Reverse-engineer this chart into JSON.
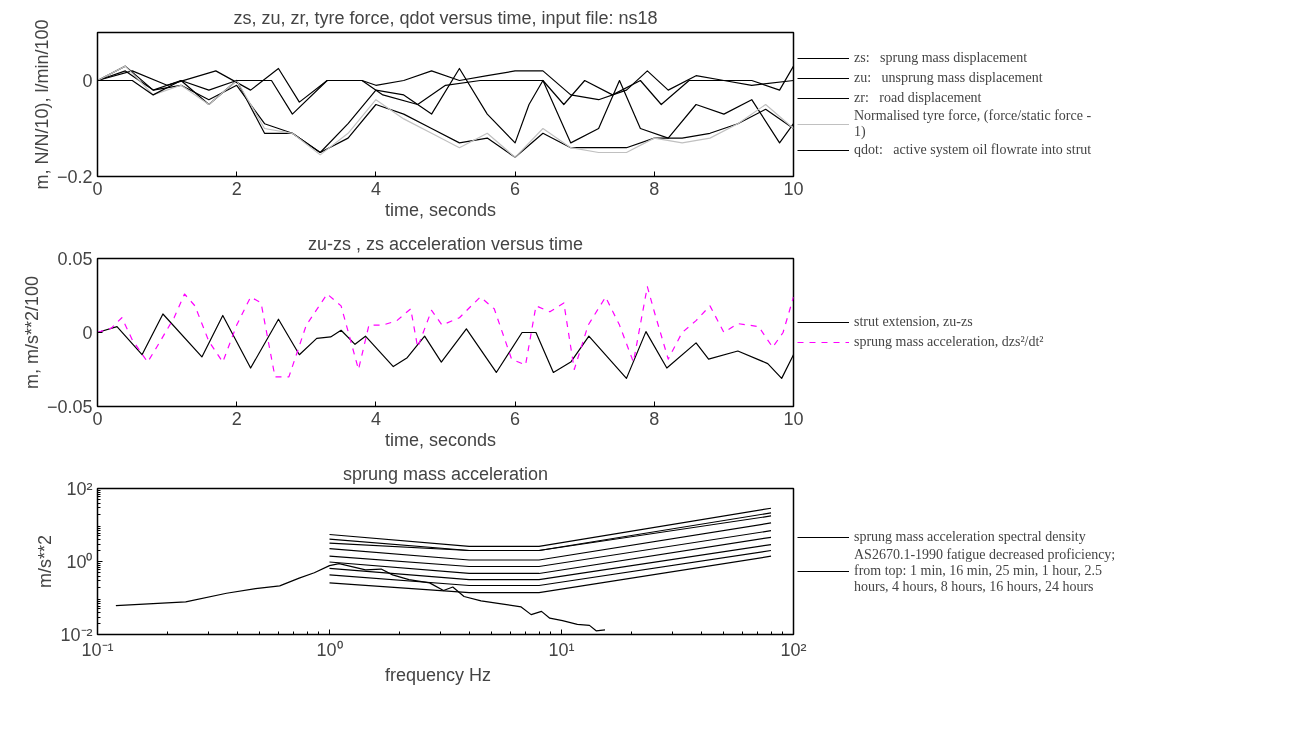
{
  "chart_data": [
    {
      "type": "line",
      "title": "zs, zu, zr, tyre force, qdot versus time, input file: ns18",
      "xlabel": "time,   seconds",
      "ylabel": "m, N/N/10), l/min/100",
      "xlim": [
        0,
        10
      ],
      "ylim": [
        -0.2,
        0.1
      ],
      "xticks": [
        0,
        2,
        4,
        6,
        8,
        10
      ],
      "yticks": [
        -0.2,
        0
      ],
      "grid": false,
      "legend": "right",
      "series": [
        {
          "name": "zs:   sprung mass displacement",
          "color": "#000000",
          "x": [
            0,
            0.4,
            0.8,
            1.2,
            1.6,
            2.0,
            2.4,
            2.8,
            3.2,
            3.6,
            4.0,
            4.4,
            4.8,
            5.2,
            5.6,
            6.0,
            6.2,
            6.4,
            6.8,
            7.2,
            7.5,
            7.8,
            8.2,
            8.6,
            9.0,
            9.4,
            9.8,
            10
          ],
          "values": [
            0,
            0.03,
            -0.02,
            0.0,
            -0.05,
            0.0,
            -0.11,
            -0.11,
            -0.15,
            -0.09,
            -0.02,
            -0.03,
            -0.07,
            0.025,
            -0.07,
            -0.13,
            -0.05,
            0.0,
            -0.13,
            -0.1,
            0.0,
            -0.1,
            -0.12,
            -0.05,
            -0.07,
            -0.04,
            -0.13,
            -0.09
          ]
        },
        {
          "name": "zu:   unsprung mass displacement",
          "color": "#000000",
          "x": [
            0,
            0.4,
            0.8,
            1.2,
            1.6,
            2.0,
            2.4,
            2.8,
            3.2,
            3.6,
            4.0,
            4.4,
            4.8,
            5.2,
            5.6,
            6.0,
            6.4,
            6.8,
            7.2,
            7.6,
            8.0,
            8.4,
            8.8,
            9.2,
            9.6,
            10
          ],
          "values": [
            0,
            0.02,
            -0.02,
            -0.01,
            -0.04,
            -0.01,
            -0.09,
            -0.11,
            -0.15,
            -0.12,
            -0.05,
            -0.07,
            -0.1,
            -0.13,
            -0.12,
            -0.16,
            -0.11,
            -0.14,
            -0.14,
            -0.14,
            -0.12,
            -0.12,
            -0.11,
            -0.09,
            -0.06,
            -0.1
          ]
        },
        {
          "name": "zr:   road displacement",
          "color": "#000000",
          "x": [
            0,
            0.5,
            1.0,
            1.7,
            2.2,
            2.6,
            2.9,
            3.3,
            3.8,
            4.0,
            4.4,
            4.8,
            5.2,
            5.6,
            6.0,
            6.4,
            6.8,
            7.2,
            7.6,
            7.9,
            8.2,
            8.6,
            9.0,
            9.4,
            9.8,
            10
          ],
          "values": [
            0,
            0.02,
            -0.01,
            0.02,
            -0.02,
            0.025,
            -0.045,
            0.0,
            0.0,
            -0.01,
            0.0,
            0.02,
            0.0,
            0.01,
            0.02,
            0.02,
            -0.03,
            -0.04,
            -0.02,
            0.02,
            -0.02,
            0.01,
            0.0,
            0.0,
            -0.02,
            0.03
          ]
        },
        {
          "name": "Normalised tyre force, (force/static force - 1)",
          "color": "#c0c0c0",
          "x": [
            0,
            0.4,
            0.8,
            1.2,
            1.6,
            2.0,
            2.4,
            2.8,
            3.2,
            3.6,
            4.0,
            4.4,
            4.8,
            5.2,
            5.6,
            6.0,
            6.4,
            6.8,
            7.2,
            7.6,
            8.0,
            8.4,
            8.8,
            9.2,
            9.6,
            10
          ],
          "values": [
            0,
            0.03,
            -0.03,
            -0.01,
            -0.05,
            0.0,
            -0.1,
            -0.11,
            -0.155,
            -0.11,
            -0.04,
            -0.08,
            -0.11,
            -0.14,
            -0.11,
            -0.16,
            -0.1,
            -0.14,
            -0.15,
            -0.15,
            -0.12,
            -0.13,
            -0.12,
            -0.09,
            -0.05,
            -0.1
          ]
        },
        {
          "name": "qdot:   active system oil flowrate into strut",
          "color": "#000000",
          "x": [
            0,
            0.5,
            0.8,
            1.2,
            1.6,
            2.0,
            2.5,
            2.8,
            3.3,
            3.8,
            4.1,
            4.6,
            5.0,
            5.5,
            6.0,
            6.4,
            6.7,
            7.0,
            7.4,
            7.8,
            8.1,
            8.5,
            9.0,
            9.4,
            10
          ],
          "values": [
            0,
            0,
            -0.03,
            0.0,
            -0.02,
            0.0,
            0.0,
            -0.07,
            0.0,
            0.0,
            -0.03,
            -0.05,
            -0.01,
            0.0,
            0.0,
            0.0,
            -0.05,
            0.0,
            -0.03,
            0.0,
            -0.05,
            0.0,
            0.0,
            -0.01,
            0.0
          ]
        }
      ]
    },
    {
      "type": "line",
      "title": "zu-zs , zs acceleration versus time",
      "xlabel": "time,   seconds",
      "ylabel": "m, m/s**2/100",
      "xlim": [
        0,
        10
      ],
      "ylim": [
        -0.05,
        0.05
      ],
      "xticks": [
        0,
        2,
        4,
        6,
        8,
        10
      ],
      "yticks": [
        -0.05,
        0,
        0.05
      ],
      "grid": false,
      "legend": "right",
      "series": [
        {
          "name": "strut extension, zu-zs",
          "color": "#000000",
          "line_style": "solid",
          "x": [
            0,
            0.28,
            0.64,
            0.94,
            1.5,
            1.8,
            2.2,
            2.6,
            2.9,
            3.15,
            3.35,
            3.5,
            3.7,
            3.85,
            4.25,
            4.45,
            4.7,
            4.94,
            5.3,
            5.73,
            6.1,
            6.3,
            6.55,
            6.8,
            7.06,
            7.6,
            7.88,
            8.18,
            8.6,
            8.78,
            9.2,
            9.63,
            9.83,
            10
          ],
          "values": [
            0,
            0.004,
            -0.015,
            0.0125,
            -0.0165,
            0.0115,
            -0.024,
            0.009,
            -0.015,
            -0.004,
            -0.003,
            0.0015,
            -0.008,
            -0.0025,
            -0.023,
            -0.017,
            -0.0025,
            -0.02,
            0.0025,
            -0.027,
            0,
            0,
            -0.027,
            -0.02,
            -0.0025,
            -0.031,
            0.0006,
            -0.024,
            -0.007,
            -0.018,
            -0.0125,
            -0.021,
            -0.031,
            -0.015
          ]
        },
        {
          "name": "sprung mass acceleration, dzs²/dt²",
          "color": "#ff00ff",
          "line_style": "dashed",
          "x": [
            0,
            0.2,
            0.35,
            0.5,
            0.72,
            0.85,
            1.1,
            1.25,
            1.4,
            1.6,
            1.8,
            2.0,
            2.2,
            2.35,
            2.55,
            2.75,
            3.0,
            3.3,
            3.5,
            3.75,
            3.9,
            4.1,
            4.3,
            4.5,
            4.6,
            4.8,
            4.95,
            5.2,
            5.5,
            5.7,
            5.95,
            6.15,
            6.3,
            6.5,
            6.7,
            6.85,
            7.05,
            7.3,
            7.5,
            7.7,
            7.9,
            8.0,
            8.2,
            8.4,
            8.6,
            8.8,
            9.0,
            9.2,
            9.5,
            9.7,
            9.85,
            10
          ],
          "values": [
            0,
            0.003,
            0.01,
            -0.005,
            -0.02,
            -0.01,
            0.01,
            0.026,
            0.018,
            -0.006,
            -0.02,
            0.005,
            0.024,
            0.02,
            -0.03,
            -0.03,
            0.005,
            0.026,
            0.018,
            -0.025,
            0.005,
            0.005,
            0.008,
            0.016,
            -0.01,
            0.015,
            0.005,
            0.01,
            0.024,
            0.016,
            -0.018,
            -0.022,
            0.018,
            0.014,
            0.02,
            -0.025,
            0.005,
            0.024,
            0.005,
            -0.02,
            0.031,
            0.014,
            -0.018,
            0.0,
            0.008,
            0.018,
            0.0,
            0.006,
            0.004,
            -0.01,
            0.0,
            0.024
          ]
        }
      ]
    },
    {
      "type": "line",
      "title": "sprung mass acceleration",
      "xlabel": "frequency    Hz",
      "ylabel": "m/s**2",
      "log": "xy",
      "xlim": [
        0.1,
        100
      ],
      "ylim": [
        0.01,
        100
      ],
      "xticks": [
        {
          "value": 0.1,
          "label": "10⁻¹"
        },
        {
          "value": 1,
          "label": "10⁰"
        },
        {
          "value": 10,
          "label": "10¹"
        },
        {
          "value": 100,
          "label": "10²"
        }
      ],
      "yticks": [
        {
          "value": 0.01,
          "label": "10⁻²"
        },
        {
          "value": 1,
          "label": "10⁰"
        },
        {
          "value": 100,
          "label": "10²"
        }
      ],
      "grid": false,
      "legend": "right",
      "series": [
        {
          "name": "sprung mass acceleration spectral density",
          "color": "#000000",
          "x": [
            0.12,
            0.24,
            0.36,
            0.48,
            0.61,
            0.74,
            0.86,
            1.0,
            1.1,
            1.43,
            1.67,
            1.87,
            2.2,
            2.7,
            3.1,
            3.4,
            3.8,
            4.5,
            5.6,
            6.7,
            7.4,
            8.2,
            8.9,
            10.1,
            11.7,
            13.2,
            14.1,
            15.4
          ],
          "values": [
            0.062,
            0.078,
            0.135,
            0.18,
            0.215,
            0.35,
            0.49,
            0.77,
            0.87,
            0.59,
            0.62,
            0.43,
            0.32,
            0.26,
            0.16,
            0.2,
            0.11,
            0.083,
            0.068,
            0.057,
            0.035,
            0.043,
            0.028,
            0.024,
            0.019,
            0.0178,
            0.0126,
            0.0134
          ]
        },
        {
          "name": "AS2670.1-1990 fatigue decreased proficiency; from top: 1 min, 16 min, 25 min, 1 hour, 2.5 hours, 4 hours, 8 hours, 16 hours, 24 hours",
          "color": "#000000",
          "x": [
            1,
            4,
            8,
            80
          ],
          "values": [
            5.5,
            2.6,
            2.6,
            28.8
          ]
        },
        {
          "color": "#000000",
          "x": [
            1,
            4,
            8,
            80
          ],
          "values": [
            4.1,
            2.0,
            2.0,
            21.5
          ]
        },
        {
          "color": "#000000",
          "x": [
            1,
            4,
            8,
            80
          ],
          "values": [
            3.2,
            2.0,
            2.0,
            17.7
          ]
        },
        {
          "color": "#000000",
          "x": [
            1,
            4,
            8,
            80
          ],
          "values": [
            2.25,
            1.1,
            1.1,
            11.4
          ]
        },
        {
          "color": "#000000",
          "x": [
            1,
            4,
            8,
            80
          ],
          "values": [
            1.4,
            0.73,
            0.73,
            7.0
          ]
        },
        {
          "color": "#000000",
          "x": [
            1,
            4,
            8,
            80
          ],
          "values": [
            0.97,
            0.47,
            0.47,
            4.6
          ]
        },
        {
          "color": "#000000",
          "x": [
            1,
            4,
            8,
            80
          ],
          "values": [
            0.65,
            0.32,
            0.32,
            2.9
          ]
        },
        {
          "color": "#000000",
          "x": [
            1,
            4,
            8,
            80
          ],
          "values": [
            0.43,
            0.22,
            0.22,
            2.0
          ]
        },
        {
          "color": "#000000",
          "x": [
            1,
            4,
            8,
            80
          ],
          "values": [
            0.26,
            0.14,
            0.14,
            1.4
          ]
        }
      ]
    }
  ]
}
